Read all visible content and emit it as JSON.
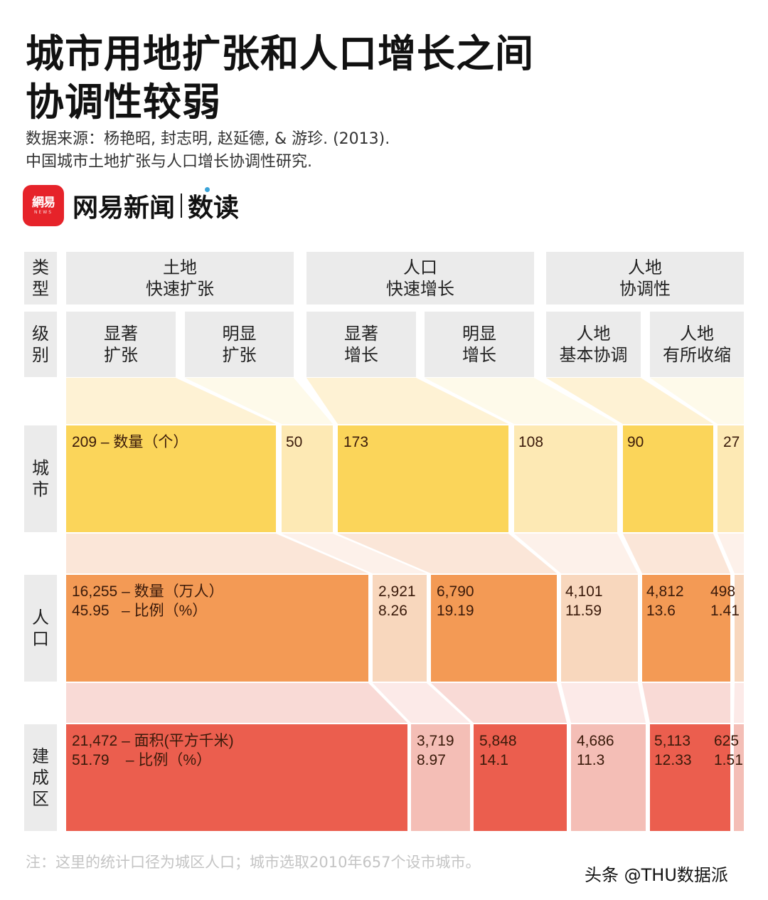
{
  "title": "城市用地扩张和人口增长之间\n协调性较弱",
  "source": "数据来源：杨艳昭, 封志明, 赵延德, & 游珍. (2013).\n中国城市土地扩张与人口增长协调性研究.",
  "brand": {
    "logo_zh": "網易",
    "logo_en": "NEWS",
    "name": "网易新闻",
    "sub": "数读"
  },
  "row_headers": {
    "type": "类\n型",
    "level": "级\n别",
    "city": "城\n市",
    "population": "人\n口",
    "builtup": "建\n成\n区"
  },
  "note": "注：这里的统计口径为城区人口；城市选取2010年657个设市城市。",
  "watermark": "头条 @THU数据派",
  "colors": {
    "header_bg": "#ebebeb",
    "city_dark": "#fbd55a",
    "city_light": "#fde9b4",
    "city_connector_dark": "#fef2d4",
    "city_connector_light": "#fefaea",
    "pop_dark": "#f39a55",
    "pop_light": "#f8d7bd",
    "pop_connector_dark": "#fbe6d8",
    "pop_connector_light": "#fdf1ea",
    "built_dark": "#eb5e4e",
    "built_light": "#f4beb6",
    "built_connector_dark": "#f9dad6",
    "built_connector_light": "#fceae8"
  },
  "chart_data": {
    "type": "table",
    "title": "城市用地扩张和人口增长之间协调性较弱",
    "types": [
      {
        "label": "土地\n快速扩张",
        "levels": [
          "显著\n扩张",
          "明显\n扩张"
        ]
      },
      {
        "label": "人口\n快速增长",
        "levels": [
          "显著\n增长",
          "明显\n增长"
        ]
      },
      {
        "label": "人地\n协调性",
        "levels": [
          "人地\n基本协调",
          "人地\n有所收缩"
        ]
      }
    ],
    "categories": [
      "显著扩张",
      "明显扩张",
      "显著增长",
      "明显增长",
      "人地基本协调",
      "人地有所收缩"
    ],
    "series": [
      {
        "name": "城市 数量（个）",
        "values": [
          209,
          50,
          173,
          108,
          90,
          27
        ]
      },
      {
        "name": "人口 数量（万人）",
        "values": [
          16255,
          2921,
          6790,
          4101,
          4812,
          498
        ]
      },
      {
        "name": "人口 比例（%）",
        "values": [
          45.95,
          8.26,
          19.19,
          11.59,
          13.6,
          1.41
        ]
      },
      {
        "name": "建成区 面积（平方千米）",
        "values": [
          21472,
          3719,
          5848,
          4686,
          5113,
          625
        ]
      },
      {
        "name": "建成区 比例（%）",
        "values": [
          51.79,
          8.97,
          14.1,
          11.3,
          12.33,
          1.51
        ]
      }
    ],
    "labels": {
      "city": [
        "209 – 数量（个）",
        "50",
        "173",
        "108",
        "90",
        "27"
      ],
      "population": [
        "16,255 – 数量（万人）\n45.95   – 比例（%）",
        "2,921\n8.26",
        "6,790\n19.19",
        "4,101\n11.59",
        "4,812\n13.6",
        "498\n1.41"
      ],
      "builtup": [
        "21,472 – 面积(平方千米)\n51.79    – 比例（%）",
        "3,719\n8.97",
        "5,848\n14.1",
        "4,686\n11.3",
        "5,113\n12.33",
        "625\n1.51"
      ]
    }
  }
}
